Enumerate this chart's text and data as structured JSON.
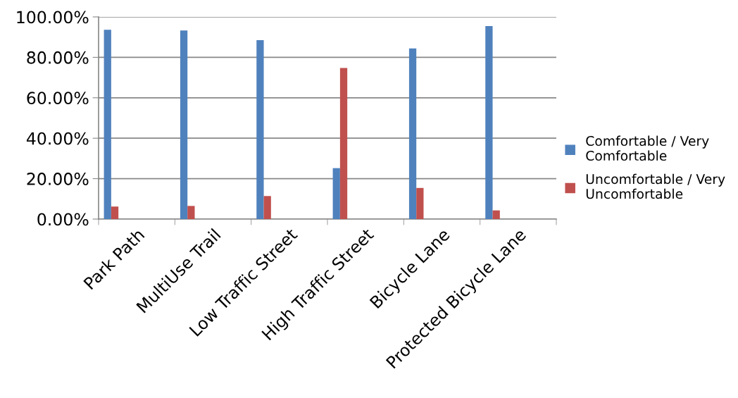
{
  "chart_data": {
    "type": "bar",
    "categories": [
      "Park Path",
      "MultiUse Trail",
      "Low Traffic Street",
      "High Traffic Street",
      "Bicycle Lane",
      "Protected Bicycle Lane"
    ],
    "series": [
      {
        "name": "Comfortable / Very Comfortable",
        "color": "#4f81bd",
        "values": [
          93.6,
          93.3,
          88.5,
          25.2,
          84.4,
          95.5
        ]
      },
      {
        "name": "Uncomfortable / Very Uncomfortable",
        "color": "#c0504d",
        "values": [
          6.2,
          6.5,
          11.4,
          74.7,
          15.4,
          4.3
        ]
      }
    ],
    "ylim": [
      0,
      100
    ],
    "yticks": [
      {
        "value": 0,
        "label": "0.00%"
      },
      {
        "value": 20,
        "label": "20.00%"
      },
      {
        "value": 40,
        "label": "40.00%"
      },
      {
        "value": 60,
        "label": "60.00%"
      },
      {
        "value": 80,
        "label": "80.00%"
      },
      {
        "value": 100,
        "label": "100.00%"
      }
    ],
    "grid": "y",
    "legend": "right"
  }
}
